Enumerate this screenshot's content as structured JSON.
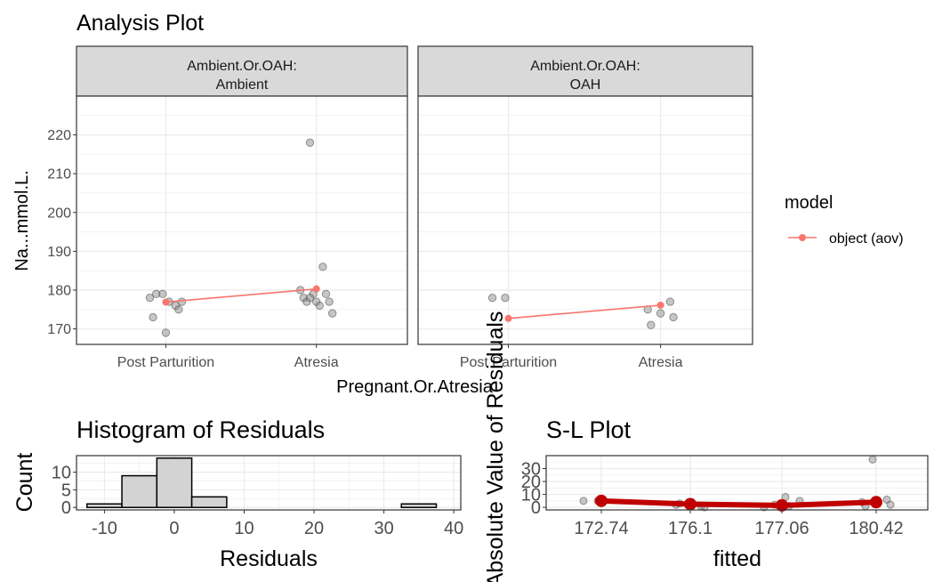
{
  "chart_data": [
    {
      "type": "scatter",
      "title": "Analysis Plot",
      "xlabel": "Pregnant.Or.Atresia",
      "ylabel": "Na...mmol.L.",
      "categories": [
        "Post Parturition",
        "Atresia"
      ],
      "ylim": [
        166,
        230
      ],
      "yticks": [
        170,
        180,
        190,
        200,
        210,
        220
      ],
      "facet_variable": "Ambient.Or.OAH:",
      "panels": [
        {
          "strip_line1": "Ambient.Or.OAH:",
          "strip_line2": "Ambient",
          "points": [
            {
              "x": "Post Parturition",
              "y": 178
            },
            {
              "x": "Post Parturition",
              "y": 179
            },
            {
              "x": "Post Parturition",
              "y": 176
            },
            {
              "x": "Post Parturition",
              "y": 173
            },
            {
              "x": "Post Parturition",
              "y": 169
            },
            {
              "x": "Post Parturition",
              "y": 175
            },
            {
              "x": "Post Parturition",
              "y": 179
            },
            {
              "x": "Post Parturition",
              "y": 177
            },
            {
              "x": "Post Parturition",
              "y": 177
            },
            {
              "x": "Atresia",
              "y": 218
            },
            {
              "x": "Atresia",
              "y": 186
            },
            {
              "x": "Atresia",
              "y": 180
            },
            {
              "x": "Atresia",
              "y": 179
            },
            {
              "x": "Atresia",
              "y": 179
            },
            {
              "x": "Atresia",
              "y": 178
            },
            {
              "x": "Atresia",
              "y": 177
            },
            {
              "x": "Atresia",
              "y": 177
            },
            {
              "x": "Atresia",
              "y": 177
            },
            {
              "x": "Atresia",
              "y": 176
            },
            {
              "x": "Atresia",
              "y": 174
            },
            {
              "x": "Atresia",
              "y": 178
            }
          ],
          "model_means": [
            176.9,
            180.3
          ]
        },
        {
          "strip_line1": "Ambient.Or.OAH:",
          "strip_line2": "OAH",
          "points": [
            {
              "x": "Post Parturition",
              "y": 178
            },
            {
              "x": "Post Parturition",
              "y": 178
            },
            {
              "x": "Atresia",
              "y": 177
            },
            {
              "x": "Atresia",
              "y": 175
            },
            {
              "x": "Atresia",
              "y": 174
            },
            {
              "x": "Atresia",
              "y": 173
            },
            {
              "x": "Atresia",
              "y": 171
            }
          ],
          "model_means": [
            172.7,
            176.1
          ]
        }
      ],
      "legend": {
        "title": "model",
        "entries": [
          "object (aov)"
        ],
        "placement": "right"
      },
      "colors": {
        "model": "#F8766D",
        "points": "#808080",
        "strip": "#d9d9d9"
      }
    },
    {
      "type": "bar",
      "title": "Histogram of Residuals",
      "xlabel": "Residuals",
      "ylabel": "Count",
      "bins": [
        {
          "start": -12.5,
          "end": -7.5,
          "count": 1
        },
        {
          "start": -7.5,
          "end": -2.5,
          "count": 9
        },
        {
          "start": -2.5,
          "end": 2.5,
          "count": 14
        },
        {
          "start": 2.5,
          "end": 7.5,
          "count": 3
        },
        {
          "start": 7.5,
          "end": 12.5,
          "count": 0
        },
        {
          "start": 12.5,
          "end": 17.5,
          "count": 0
        },
        {
          "start": 17.5,
          "end": 22.5,
          "count": 0
        },
        {
          "start": 22.5,
          "end": 27.5,
          "count": 0
        },
        {
          "start": 27.5,
          "end": 32.5,
          "count": 0
        },
        {
          "start": 32.5,
          "end": 37.5,
          "count": 1
        }
      ],
      "xlim": [
        -14,
        41
      ],
      "ylim": [
        -0.7,
        14.7
      ],
      "xticks": [
        -10,
        0,
        10,
        20,
        30,
        40
      ],
      "yticks": [
        0,
        5,
        10
      ],
      "colors": {
        "fill": "#d3d3d3",
        "outline": "#000000"
      }
    },
    {
      "type": "scatter",
      "title": "S-L Plot",
      "xlabel": "fitted",
      "ylabel": "Absolute Value of Residuals",
      "xticks": [
        "172.74",
        "176.1",
        "177.06",
        "180.42"
      ],
      "x_positions": [
        172.74,
        176.1,
        177.06,
        180.42
      ],
      "ylim": [
        -2,
        40
      ],
      "yticks": [
        0,
        10,
        20,
        30
      ],
      "points": [
        {
          "x": 172.74,
          "y": 5
        },
        {
          "x": 172.74,
          "y": 5
        },
        {
          "x": 176.1,
          "y": 1
        },
        {
          "x": 176.1,
          "y": 2
        },
        {
          "x": 176.1,
          "y": 4
        },
        {
          "x": 176.1,
          "y": 0
        },
        {
          "x": 176.1,
          "y": 3
        },
        {
          "x": 177.06,
          "y": 8
        },
        {
          "x": 177.06,
          "y": 5
        },
        {
          "x": 177.06,
          "y": 2
        },
        {
          "x": 177.06,
          "y": 1
        },
        {
          "x": 177.06,
          "y": 0
        },
        {
          "x": 180.42,
          "y": 37
        },
        {
          "x": 180.42,
          "y": 6
        },
        {
          "x": 180.42,
          "y": 4
        },
        {
          "x": 180.42,
          "y": 3
        },
        {
          "x": 180.42,
          "y": 2
        },
        {
          "x": 180.42,
          "y": 1
        }
      ],
      "means": [
        5,
        2.5,
        1.5,
        4
      ],
      "colors": {
        "mean": "#C00000",
        "points": "#808080"
      }
    }
  ]
}
